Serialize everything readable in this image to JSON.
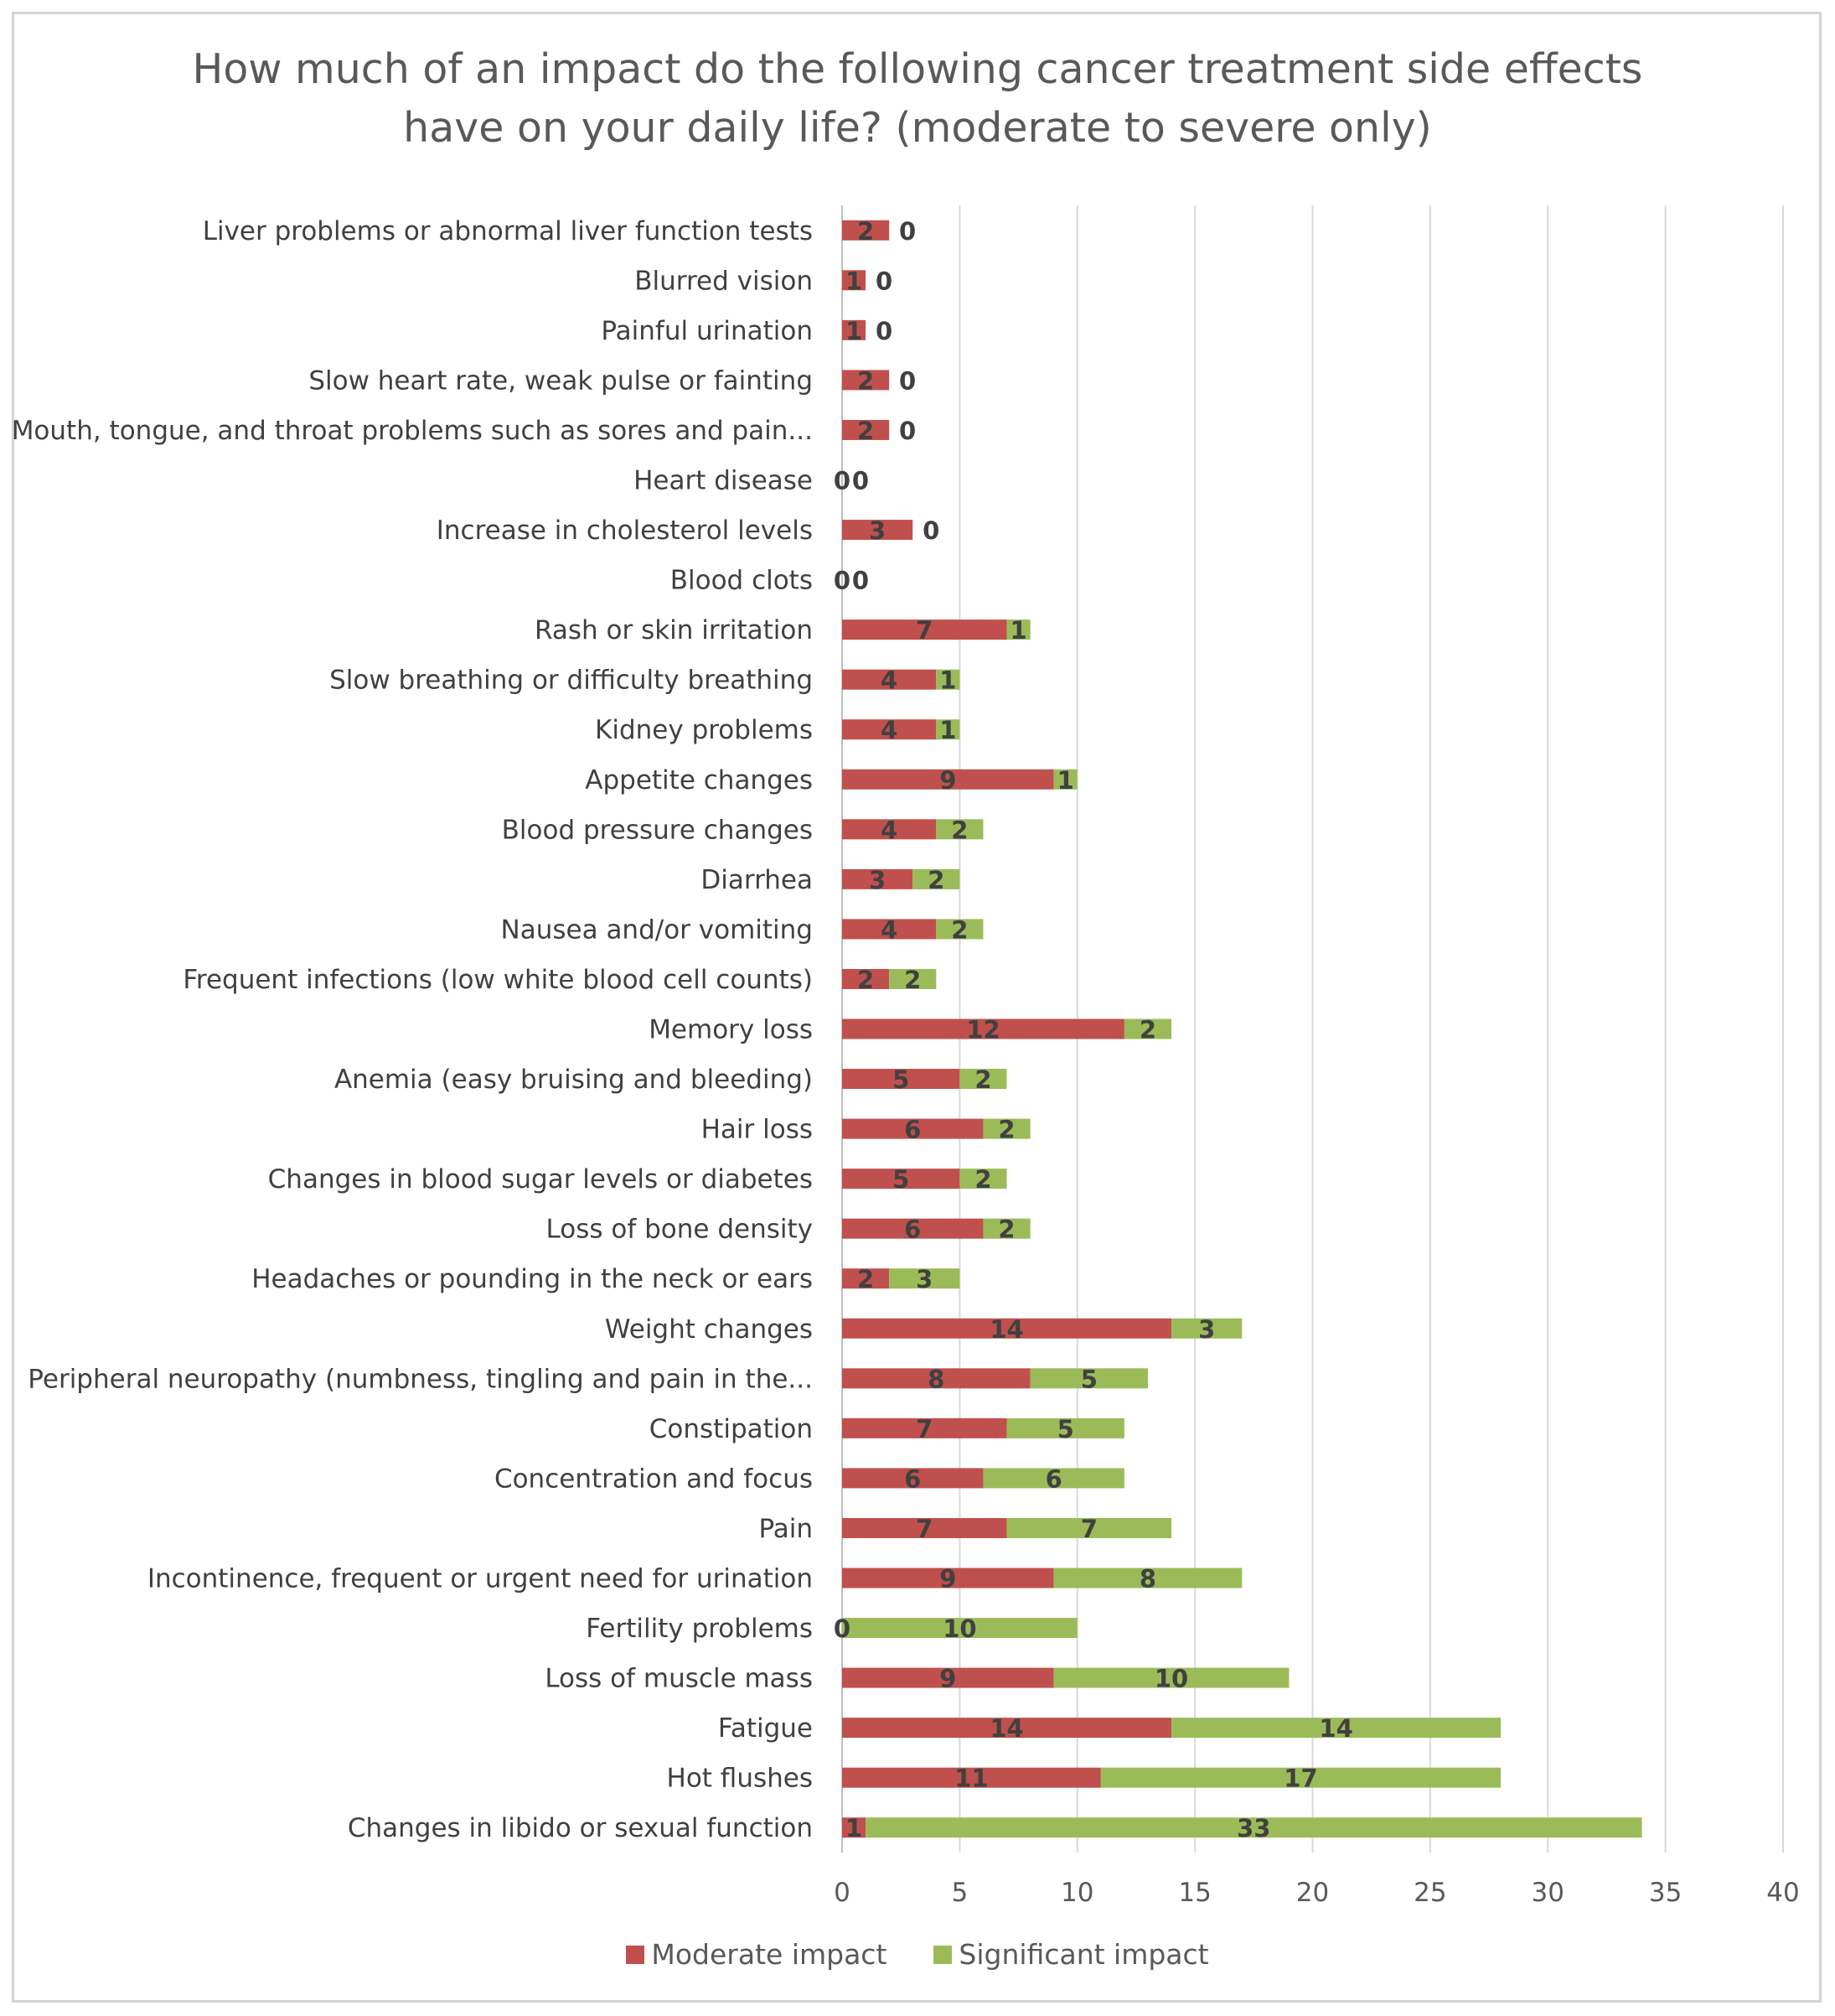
{
  "chart_data": {
    "type": "bar",
    "orientation": "horizontal",
    "stacked": true,
    "title_lines": [
      "How much of an impact do the following cancer treatment side effects",
      "have on your daily life? (moderate to severe only)"
    ],
    "categories": [
      "Liver problems or abnormal liver function tests",
      "Blurred vision",
      "Painful urination",
      "Slow heart rate, weak pulse or fainting",
      "Mouth, tongue, and throat problems such as sores and pain...",
      "Heart disease",
      "Increase in cholesterol levels",
      "Blood clots",
      "Rash or skin irritation",
      "Slow breathing or difficulty breathing",
      "Kidney problems",
      "Appetite changes",
      "Blood pressure changes",
      "Diarrhea",
      "Nausea and/or vomiting",
      "Frequent infections (low white blood cell counts)",
      "Memory loss",
      "Anemia (easy bruising and bleeding)",
      "Hair loss",
      "Changes in blood sugar levels or diabetes",
      "Loss of bone density",
      "Headaches or pounding in the neck or ears",
      "Weight changes",
      "Peripheral neuropathy (numbness, tingling and pain in the...",
      "Constipation",
      "Concentration and focus",
      "Pain",
      "Incontinence, frequent or urgent need for urination",
      "Fertility problems",
      "Loss of muscle mass",
      "Fatigue",
      "Hot flushes",
      "Changes in libido or sexual function"
    ],
    "series": [
      {
        "name": "Moderate impact",
        "color": "#c0504d",
        "values": [
          2,
          1,
          1,
          2,
          2,
          0,
          3,
          0,
          7,
          4,
          4,
          9,
          4,
          3,
          4,
          2,
          12,
          5,
          6,
          5,
          6,
          2,
          14,
          8,
          7,
          6,
          7,
          9,
          0,
          9,
          14,
          11,
          1
        ]
      },
      {
        "name": "Significant impact",
        "color": "#9bbb59",
        "values": [
          0,
          0,
          0,
          0,
          0,
          0,
          0,
          0,
          1,
          1,
          1,
          1,
          2,
          2,
          2,
          2,
          2,
          2,
          2,
          2,
          2,
          3,
          3,
          5,
          5,
          6,
          7,
          8,
          10,
          10,
          14,
          17,
          33
        ]
      }
    ],
    "xlim": [
      0,
      40
    ],
    "xticks": [
      0,
      5,
      10,
      15,
      20,
      25,
      30,
      35,
      40
    ],
    "xlabel": "",
    "ylabel": "",
    "grid": "vertical",
    "legend_position": "bottom"
  }
}
